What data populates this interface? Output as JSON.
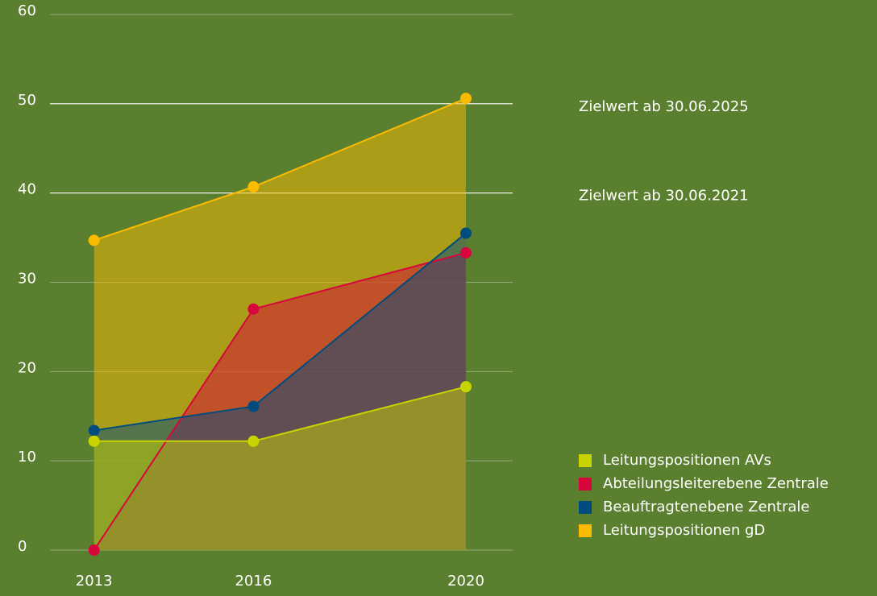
{
  "chart_data": {
    "type": "area",
    "x": [
      2013,
      2016,
      2020
    ],
    "xlim": [
      2012.17,
      2020.88
    ],
    "xticks": [
      2013,
      2016,
      2020
    ],
    "ylim": [
      0,
      60
    ],
    "yticks": [
      0,
      10,
      20,
      30,
      40,
      50,
      60
    ],
    "grid": true,
    "reference_lines": [
      {
        "value": 50,
        "label": "Zielwert ab 30.06.2025"
      },
      {
        "value": 40,
        "label": "Zielwert ab 30.06.2021"
      }
    ],
    "legend": "bottom-right",
    "series": [
      {
        "name": "Leitungspositionen gD",
        "color": "#fbbb00",
        "values": [
          34.7,
          40.7,
          50.6
        ]
      },
      {
        "name": "Abteilungsleiterebene Zentrale",
        "color": "#d7063c",
        "values": [
          0,
          27,
          33.3
        ]
      },
      {
        "name": "Beauftragtenebene Zentrale",
        "color": "#004c7f",
        "values": [
          13.4,
          16.1,
          35.5
        ]
      },
      {
        "name": "Leitungspositionen AVs",
        "color": "#c8d400",
        "values": [
          12.2,
          12.2,
          18.3
        ]
      }
    ],
    "legend_order": [
      3,
      1,
      2,
      0
    ]
  }
}
